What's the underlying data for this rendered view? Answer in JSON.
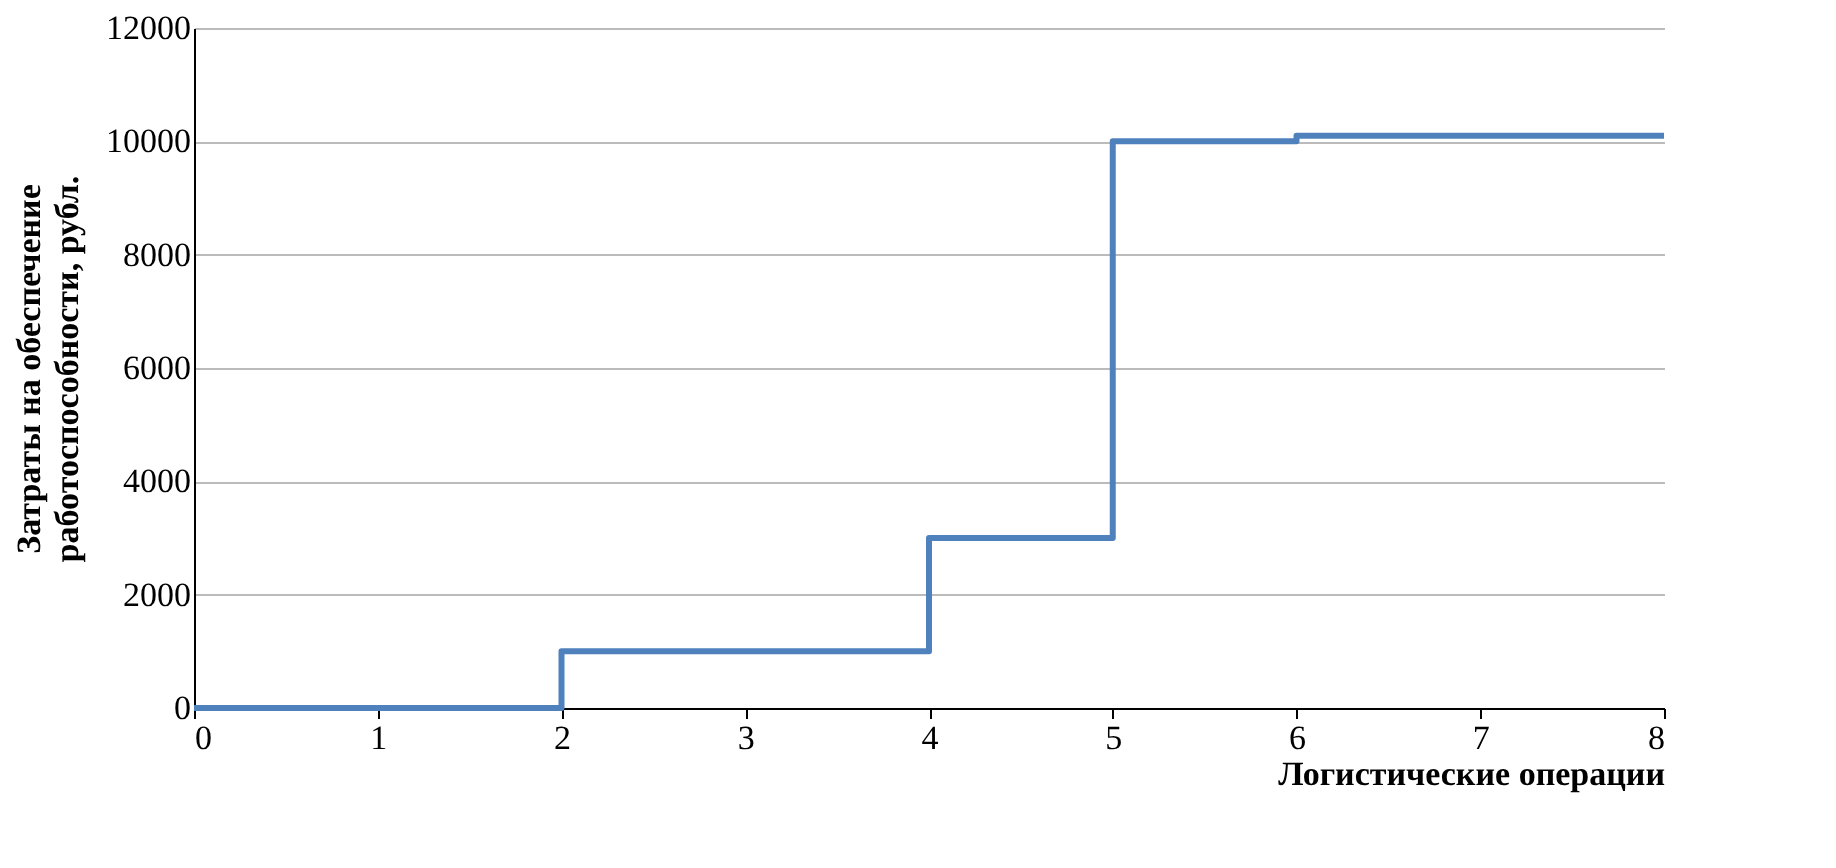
{
  "chart_data": {
    "type": "step",
    "xlabel": "Логистические операции",
    "ylabel": "Затраты на обеспечение\nработоспособности, рубл.",
    "x": [
      0,
      2,
      4,
      5,
      6,
      8
    ],
    "series": [
      {
        "color": "#4f81bd",
        "values": [
          0,
          1000,
          3000,
          10000,
          10100,
          10100
        ]
      }
    ],
    "xlim": [
      0,
      8
    ],
    "xticks": [
      0,
      1,
      2,
      3,
      4,
      5,
      6,
      7,
      8
    ],
    "ylim": [
      0,
      12000
    ],
    "yticks": [
      0,
      2000,
      4000,
      6000,
      8000,
      10000,
      12000
    ],
    "grid": "y"
  }
}
